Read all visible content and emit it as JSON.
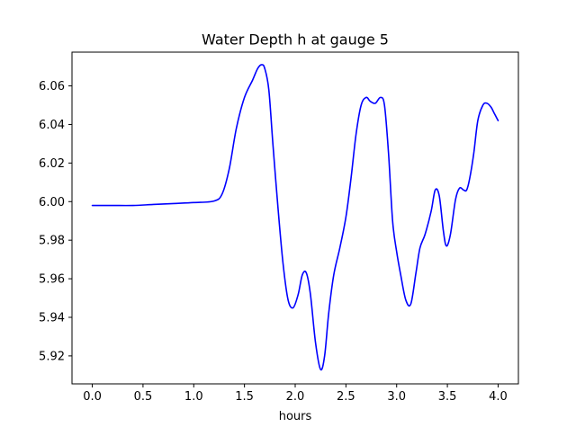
{
  "chart_data": {
    "type": "line",
    "title": "Water Depth h at gauge 5",
    "xlabel": "hours",
    "ylabel": "",
    "xlim": [
      -0.2,
      4.2
    ],
    "ylim": [
      5.9055,
      6.0775
    ],
    "xticks": [
      0.0,
      0.5,
      1.0,
      1.5,
      2.0,
      2.5,
      3.0,
      3.5,
      4.0
    ],
    "xtick_labels": [
      "0.0",
      "0.5",
      "1.0",
      "1.5",
      "2.0",
      "2.5",
      "3.0",
      "3.5",
      "4.0"
    ],
    "yticks": [
      5.92,
      5.94,
      5.96,
      5.98,
      6.0,
      6.02,
      6.04,
      6.06
    ],
    "ytick_labels": [
      "5.92",
      "5.94",
      "5.96",
      "5.98",
      "6.00",
      "6.02",
      "6.04",
      "6.06"
    ],
    "grid": false,
    "series": [
      {
        "color": "#0000ff",
        "x": [
          0.0,
          0.2,
          0.4,
          0.6,
          0.8,
          1.0,
          1.2,
          1.28,
          1.35,
          1.42,
          1.5,
          1.58,
          1.63,
          1.67,
          1.7,
          1.74,
          1.78,
          1.83,
          1.88,
          1.93,
          1.98,
          2.03,
          2.07,
          2.11,
          2.15,
          2.2,
          2.25,
          2.29,
          2.33,
          2.38,
          2.44,
          2.5,
          2.55,
          2.6,
          2.65,
          2.7,
          2.74,
          2.79,
          2.84,
          2.88,
          2.92,
          2.96,
          3.0,
          3.04,
          3.09,
          3.14,
          3.19,
          3.23,
          3.28,
          3.34,
          3.38,
          3.42,
          3.46,
          3.49,
          3.53,
          3.58,
          3.62,
          3.66,
          3.69,
          3.72,
          3.76,
          3.8,
          3.85,
          3.89,
          3.93,
          3.96,
          3.98,
          4.0
        ],
        "y": [
          5.998,
          5.998,
          5.998,
          5.9985,
          5.999,
          5.9995,
          6.0003,
          6.004,
          6.017,
          6.038,
          6.054,
          6.063,
          6.069,
          6.071,
          6.069,
          6.058,
          6.03,
          5.997,
          5.968,
          5.949,
          5.945,
          5.952,
          5.962,
          5.963,
          5.952,
          5.927,
          5.913,
          5.92,
          5.942,
          5.962,
          5.976,
          5.992,
          6.012,
          6.035,
          6.05,
          6.054,
          6.052,
          6.051,
          6.054,
          6.05,
          6.025,
          5.99,
          5.974,
          5.962,
          5.949,
          5.947,
          5.963,
          5.976,
          5.983,
          5.995,
          6.006,
          6.003,
          5.985,
          5.977,
          5.983,
          6.001,
          6.007,
          6.006,
          6.006,
          6.012,
          6.025,
          6.042,
          6.05,
          6.051,
          6.049,
          6.046,
          6.044,
          6.042
        ]
      }
    ]
  }
}
